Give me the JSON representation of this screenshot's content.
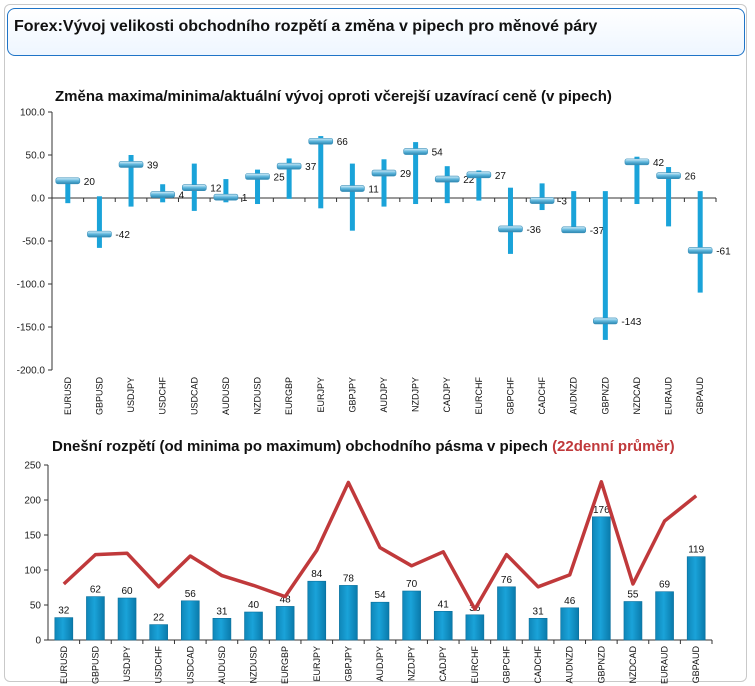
{
  "header": {
    "title": "Forex:Vývoj velikosti obchodního rozpětí a změna v pipech pro měnové páry"
  },
  "colors": {
    "bar": "#1aa3d9",
    "marker": "#5fb6dc",
    "line": "#c0393b",
    "axis": "#333333",
    "header_border": "#1f74c7"
  },
  "chart_data": [
    {
      "type": "bar",
      "title": "Změna maxima/minima/aktuální vývoj oproti včerejší uzavírací ceně (v pipech)",
      "ylim": [
        -200,
        100
      ],
      "yticks": [
        "100.0",
        "50.0",
        "0.0",
        "-50.0",
        "-100.0",
        "-150.0",
        "-200.0"
      ],
      "ytick_values": [
        100,
        50,
        0,
        -50,
        -100,
        -150,
        -200
      ],
      "grid": false,
      "categories": [
        "EURUSD",
        "GBPUSD",
        "USDJPY",
        "USDCHF",
        "USDCAD",
        "AUDUSD",
        "NZDUSD",
        "EURGBP",
        "EURJPY",
        "GBPJPY",
        "AUDJPY",
        "NZDJPY",
        "CADJPY",
        "EURCHF",
        "GBPCHF",
        "CADCHF",
        "AUDNZD",
        "GBPNZD",
        "NZDCAD",
        "EURAUD",
        "GBPAUD"
      ],
      "series": [
        {
          "key": "high",
          "values": [
            22,
            2,
            50,
            16,
            40,
            22,
            33,
            46,
            72,
            40,
            45,
            65,
            37,
            32,
            12,
            17,
            8,
            8,
            48,
            36,
            8
          ]
        },
        {
          "key": "low",
          "values": [
            -6,
            -58,
            -10,
            -5,
            -15,
            -5,
            -7,
            -1,
            -12,
            -38,
            -10,
            -7,
            -6,
            -3,
            -65,
            -14,
            -40,
            -165,
            -7,
            -33,
            -110
          ]
        },
        {
          "key": "current",
          "values": [
            20,
            -42,
            39,
            4,
            12,
            1,
            25,
            37,
            66,
            11,
            29,
            54,
            22,
            27,
            -36,
            -3,
            -37,
            -143,
            42,
            26,
            -61
          ]
        }
      ],
      "labels": [
        "20",
        "-42",
        "39",
        "4",
        "12",
        "1",
        "25",
        "37",
        "66",
        "11",
        "29",
        "54",
        "22",
        "27",
        "-36",
        "-3",
        "-37",
        "-143",
        "42",
        "26",
        "-61"
      ]
    },
    {
      "type": "bar",
      "title": "Dnešní rozpětí (od minima po maximum) obchodního pásma v pipech",
      "title_suffix": "(22denní průměr)",
      "ylim": [
        0,
        250
      ],
      "yticks": [
        "250",
        "200",
        "150",
        "100",
        "50",
        "0"
      ],
      "ytick_values": [
        250,
        200,
        150,
        100,
        50,
        0
      ],
      "grid": false,
      "categories": [
        "EURUSD",
        "GBPUSD",
        "USDJPY",
        "USDCHF",
        "USDCAD",
        "AUDUSD",
        "NZDUSD",
        "EURGBP",
        "EURJPY",
        "GBPJPY",
        "AUDJPY",
        "NZDJPY",
        "CADJPY",
        "EURCHF",
        "GBPCHF",
        "CADCHF",
        "AUDNZD",
        "GBPNZD",
        "NZDCAD",
        "EURAUD",
        "GBPAUD"
      ],
      "series": [
        {
          "key": "range",
          "values": [
            32,
            62,
            60,
            22,
            56,
            31,
            40,
            48,
            84,
            78,
            54,
            70,
            41,
            36,
            76,
            31,
            46,
            176,
            55,
            69,
            119
          ]
        },
        {
          "key": "avg22",
          "values": [
            80,
            122,
            124,
            76,
            120,
            92,
            78,
            62,
            128,
            225,
            132,
            106,
            126,
            44,
            122,
            76,
            93,
            226,
            80,
            170,
            206
          ]
        }
      ],
      "labels": [
        "32",
        "62",
        "60",
        "22",
        "56",
        "31",
        "40",
        "48",
        "84",
        "78",
        "54",
        "70",
        "41",
        "36",
        "76",
        "31",
        "46",
        "176",
        "55",
        "69",
        "119"
      ]
    }
  ]
}
